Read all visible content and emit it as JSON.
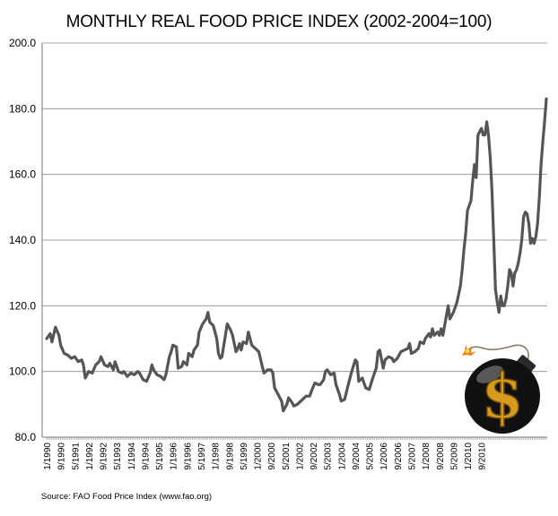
{
  "chart_data": {
    "type": "line",
    "title": "MONTHLY REAL FOOD PRICE INDEX (2002-2004=100)",
    "xlabel": "",
    "ylabel": "",
    "ylim": [
      80,
      200
    ],
    "yticks": [
      "80.0",
      "100.0",
      "120.0",
      "140.0",
      "160.0",
      "180.0",
      "200.0"
    ],
    "xticks": [
      "1/1990",
      "9/1990",
      "5/1991",
      "1/1992",
      "9/1992",
      "5/1993",
      "1/1994",
      "9/1994",
      "5/1995",
      "1/1996",
      "9/1996",
      "5/1997",
      "1/1998",
      "9/1998",
      "5/1999",
      "1/2000",
      "9/2000",
      "5/2001",
      "1/2002",
      "9/2002",
      "5/2003",
      "1/2004",
      "9/2004",
      "5/2005",
      "1/2006",
      "9/2006",
      "5/2007",
      "1/2008",
      "9/2008",
      "5/2009",
      "1/2010",
      "9/2010"
    ],
    "grid": "horizontal",
    "series": [
      {
        "name": "Monthly Real Food Price Index",
        "color": "#555555",
        "points": [
          [
            0,
            110
          ],
          [
            2,
            111.5
          ],
          [
            3,
            109
          ],
          [
            5,
            113.5
          ],
          [
            7,
            111
          ],
          [
            8,
            108
          ],
          [
            10,
            105.5
          ],
          [
            12,
            105
          ],
          [
            14,
            104
          ],
          [
            16,
            104.5
          ],
          [
            18,
            103
          ],
          [
            20,
            103.5
          ],
          [
            21,
            102
          ],
          [
            22,
            98
          ],
          [
            24,
            100
          ],
          [
            26,
            99.5
          ],
          [
            28,
            102
          ],
          [
            30,
            103
          ],
          [
            31,
            104.5
          ],
          [
            33,
            102
          ],
          [
            35,
            101.5
          ],
          [
            36,
            102.5
          ],
          [
            38,
            100.5
          ],
          [
            39,
            103
          ],
          [
            41,
            100
          ],
          [
            43,
            99.5
          ],
          [
            44,
            100
          ],
          [
            46,
            98.5
          ],
          [
            48,
            99.5
          ],
          [
            50,
            99
          ],
          [
            52,
            100
          ],
          [
            53,
            99.5
          ],
          [
            55,
            97.5
          ],
          [
            57,
            97
          ],
          [
            59,
            99.5
          ],
          [
            60,
            102
          ],
          [
            61,
            100.5
          ],
          [
            63,
            99
          ],
          [
            65,
            98.5
          ],
          [
            67,
            97.5
          ],
          [
            68,
            99
          ],
          [
            70,
            104.5
          ],
          [
            71,
            106
          ],
          [
            72,
            108
          ],
          [
            74,
            107.5
          ],
          [
            75,
            101
          ],
          [
            77,
            101.5
          ],
          [
            78,
            103
          ],
          [
            80,
            102
          ],
          [
            81,
            105.5
          ],
          [
            83,
            104.5
          ],
          [
            84,
            106.5
          ],
          [
            86,
            108
          ],
          [
            87,
            112
          ],
          [
            89,
            114.5
          ],
          [
            91,
            116
          ],
          [
            92,
            118
          ],
          [
            93,
            115
          ],
          [
            95,
            114
          ],
          [
            97,
            110
          ],
          [
            98,
            105.5
          ],
          [
            99,
            104
          ],
          [
            100,
            104.5
          ],
          [
            102,
            111
          ],
          [
            103,
            114.5
          ],
          [
            105,
            112.5
          ],
          [
            106,
            111
          ],
          [
            108,
            106
          ],
          [
            109,
            107
          ],
          [
            110,
            108.5
          ],
          [
            111,
            106.5
          ],
          [
            112,
            109
          ],
          [
            114,
            108.5
          ],
          [
            115,
            112
          ],
          [
            117,
            108
          ],
          [
            119,
            107
          ],
          [
            121,
            106
          ],
          [
            123,
            101.5
          ],
          [
            124,
            99.5
          ],
          [
            126,
            100.5
          ],
          [
            128,
            100.5
          ],
          [
            129,
            99.5
          ],
          [
            130,
            95
          ],
          [
            132,
            93
          ],
          [
            134,
            91
          ],
          [
            135,
            88
          ],
          [
            137,
            90
          ],
          [
            138,
            92
          ],
          [
            140,
            90.5
          ],
          [
            141,
            89.5
          ],
          [
            143,
            90
          ],
          [
            145,
            91
          ],
          [
            147,
            92
          ],
          [
            148,
            92.5
          ],
          [
            150,
            92.5
          ],
          [
            151,
            94
          ],
          [
            153,
            96.5
          ],
          [
            155,
            96
          ],
          [
            156,
            96
          ],
          [
            158,
            97.5
          ],
          [
            159,
            100
          ],
          [
            160,
            100.5
          ],
          [
            162,
            99
          ],
          [
            164,
            99.5
          ],
          [
            165,
            96
          ],
          [
            167,
            93
          ],
          [
            168,
            91
          ],
          [
            170,
            91.5
          ],
          [
            172,
            96
          ],
          [
            174,
            100
          ],
          [
            176,
            103.5
          ],
          [
            177,
            103
          ],
          [
            178,
            97
          ],
          [
            180,
            98
          ],
          [
            182,
            95
          ],
          [
            184,
            94.5
          ],
          [
            186,
            98
          ],
          [
            188,
            101
          ],
          [
            189,
            106
          ],
          [
            190,
            106.5
          ],
          [
            192,
            101
          ],
          [
            193,
            103.5
          ],
          [
            195,
            104.5
          ],
          [
            197,
            104
          ],
          [
            198,
            103
          ],
          [
            200,
            104
          ],
          [
            202,
            106
          ],
          [
            204,
            106.5
          ],
          [
            206,
            107
          ],
          [
            207,
            108.5
          ],
          [
            208,
            105.5
          ],
          [
            210,
            106
          ],
          [
            212,
            107
          ],
          [
            213,
            109
          ],
          [
            215,
            108.5
          ],
          [
            216,
            110
          ],
          [
            218,
            111.5
          ],
          [
            219,
            110.5
          ],
          [
            220,
            113
          ],
          [
            221,
            111
          ],
          [
            223,
            112
          ],
          [
            224,
            111
          ],
          [
            225,
            113
          ],
          [
            226,
            111
          ],
          [
            228,
            117
          ],
          [
            229,
            120
          ],
          [
            230,
            116
          ],
          [
            232,
            118
          ],
          [
            234,
            121
          ],
          [
            236,
            126
          ],
          [
            237,
            131
          ],
          [
            238,
            137
          ],
          [
            239,
            142
          ],
          [
            240,
            149
          ],
          [
            242,
            152
          ],
          [
            243,
            158
          ],
          [
            244,
            163
          ],
          [
            245,
            159
          ],
          [
            246,
            172
          ],
          [
            247,
            173
          ],
          [
            248,
            174
          ],
          [
            249,
            172
          ],
          [
            250,
            172
          ],
          [
            251,
            176
          ],
          [
            252,
            172
          ],
          [
            253,
            165
          ],
          [
            254,
            155
          ],
          [
            255,
            140
          ],
          [
            256,
            125
          ],
          [
            257,
            121
          ],
          [
            258,
            118
          ],
          [
            259,
            123
          ],
          [
            260,
            120
          ],
          [
            261,
            120
          ],
          [
            262,
            122
          ],
          [
            263,
            126
          ],
          [
            264,
            131
          ],
          [
            265,
            130
          ],
          [
            266,
            126
          ],
          [
            267,
            130
          ],
          [
            268,
            131
          ],
          [
            269,
            133
          ],
          [
            270,
            136
          ],
          [
            271,
            140
          ],
          [
            272,
            147
          ],
          [
            273,
            148.5
          ],
          [
            274,
            148
          ],
          [
            275,
            145
          ],
          [
            276,
            139
          ],
          [
            277,
            140.5
          ],
          [
            278,
            139
          ],
          [
            279,
            141
          ],
          [
            280,
            145
          ],
          [
            281,
            153
          ],
          [
            282,
            163
          ],
          [
            283,
            170
          ],
          [
            284,
            176
          ],
          [
            285,
            183
          ]
        ]
      }
    ]
  },
  "source_note": "Source: FAO Food Price Index (www.fao.org)",
  "decoration": {
    "bomb_symbol": "$",
    "bomb_color": "#111111",
    "symbol_color": "#d89a1c"
  }
}
